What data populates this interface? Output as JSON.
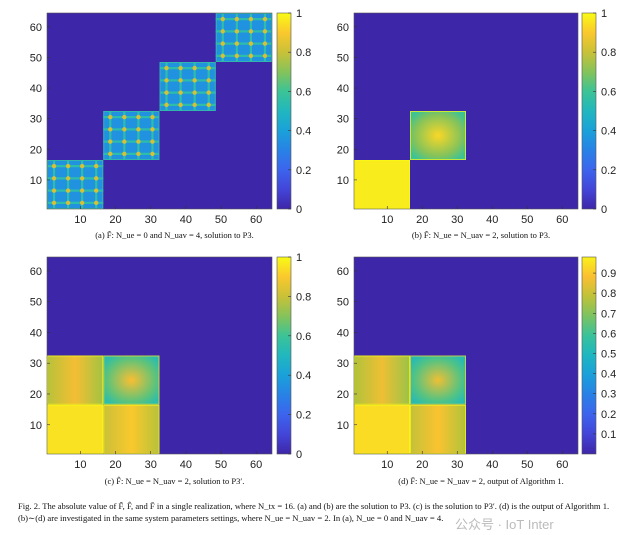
{
  "caption": "Fig. 2.  The absolute value of F̃, F̂, and F̄ in a single realization, where N_tx = 16. (a) and (b) are the solution to P3. (c) is the solution to P3′. (d) is the output of Algorithm 1. (b)∼(d) are investigated in the same system parameters settings, where N_ue = N_uav = 2. In (a), N_ue = 0 and N_uav = 4.",
  "watermark": "公众号 · IoT Inter",
  "colors": {
    "colormap_low": "#3e26a8",
    "colormap_mid": "#1ab1d2",
    "colormap_high": "#f9fb15"
  },
  "chart_data": [
    {
      "type": "heatmap",
      "panel": "a",
      "caption": "(a)  F̃: N_ue = 0 and N_uav = 4, solution to P3.",
      "xticks": [
        "10",
        "20",
        "30",
        "40",
        "50",
        "60"
      ],
      "yticks": [
        "10",
        "20",
        "30",
        "40",
        "50",
        "60"
      ],
      "xlim": [
        1,
        64
      ],
      "ylim": [
        1,
        64
      ],
      "colorbar": {
        "range": [
          0,
          1
        ],
        "ticks": [
          "0",
          "0.2",
          "0.4",
          "0.6",
          "0.8",
          "1"
        ]
      },
      "blocks": [
        {
          "rows": [
            1,
            16
          ],
          "cols": [
            1,
            16
          ],
          "value": 0.35,
          "pattern": "grid"
        },
        {
          "rows": [
            17,
            32
          ],
          "cols": [
            17,
            32
          ],
          "value": 0.35,
          "pattern": "grid"
        },
        {
          "rows": [
            33,
            48
          ],
          "cols": [
            33,
            48
          ],
          "value": 0.35,
          "pattern": "grid"
        },
        {
          "rows": [
            49,
            64
          ],
          "cols": [
            49,
            64
          ],
          "value": 0.35,
          "pattern": "grid"
        }
      ],
      "background_value": 0.0
    },
    {
      "type": "heatmap",
      "panel": "b",
      "caption": "(b)  F̃: N_ue = N_uav = 2, solution to P3.",
      "xticks": [
        "10",
        "20",
        "30",
        "40",
        "50",
        "60"
      ],
      "yticks": [
        "10",
        "20",
        "30",
        "40",
        "50",
        "60"
      ],
      "xlim": [
        1,
        64
      ],
      "ylim": [
        1,
        64
      ],
      "colorbar": {
        "range": [
          0,
          1
        ],
        "ticks": [
          "0",
          "0.2",
          "0.4",
          "0.6",
          "0.8",
          "1"
        ]
      },
      "blocks": [
        {
          "rows": [
            1,
            16
          ],
          "cols": [
            1,
            16
          ],
          "value": 0.97,
          "pattern": "flat"
        },
        {
          "rows": [
            17,
            32
          ],
          "cols": [
            17,
            32
          ],
          "value": 0.75,
          "pattern": "radial"
        }
      ],
      "background_value": 0.0
    },
    {
      "type": "heatmap",
      "panel": "c",
      "caption": "(c)  F̂: N_ue = N_uav = 2, solution to P3′.",
      "xticks": [
        "10",
        "20",
        "30",
        "40",
        "50",
        "60"
      ],
      "yticks": [
        "10",
        "20",
        "30",
        "40",
        "50",
        "60"
      ],
      "xlim": [
        1,
        64
      ],
      "ylim": [
        1,
        64
      ],
      "colorbar": {
        "range": [
          0,
          1
        ],
        "ticks": [
          "0",
          "0.2",
          "0.4",
          "0.6",
          "0.8",
          "1"
        ]
      },
      "blocks": [
        {
          "rows": [
            1,
            16
          ],
          "cols": [
            1,
            16
          ],
          "value": 0.95,
          "pattern": "flat"
        },
        {
          "rows": [
            1,
            16
          ],
          "cols": [
            17,
            32
          ],
          "value": 0.85,
          "pattern": "band"
        },
        {
          "rows": [
            17,
            32
          ],
          "cols": [
            1,
            16
          ],
          "value": 0.82,
          "pattern": "band"
        },
        {
          "rows": [
            17,
            32
          ],
          "cols": [
            17,
            32
          ],
          "value": 0.7,
          "pattern": "radial"
        }
      ],
      "background_value": 0.0
    },
    {
      "type": "heatmap",
      "panel": "d",
      "caption": "(d)  F̄: N_ue = N_uav = 2, output of Algorithm 1.",
      "xticks": [
        "10",
        "20",
        "30",
        "40",
        "50",
        "60"
      ],
      "yticks": [
        "10",
        "20",
        "30",
        "40",
        "50",
        "60"
      ],
      "xlim": [
        1,
        64
      ],
      "ylim": [
        1,
        64
      ],
      "colorbar": {
        "range": [
          0,
          0.98
        ],
        "ticks": [
          "0.1",
          "0.2",
          "0.3",
          "0.4",
          "0.5",
          "0.6",
          "0.7",
          "0.8",
          "0.9"
        ]
      },
      "blocks": [
        {
          "rows": [
            1,
            16
          ],
          "cols": [
            1,
            16
          ],
          "value": 0.94,
          "pattern": "flat"
        },
        {
          "rows": [
            1,
            16
          ],
          "cols": [
            17,
            32
          ],
          "value": 0.84,
          "pattern": "band"
        },
        {
          "rows": [
            17,
            32
          ],
          "cols": [
            1,
            16
          ],
          "value": 0.81,
          "pattern": "band"
        },
        {
          "rows": [
            17,
            32
          ],
          "cols": [
            17,
            32
          ],
          "value": 0.68,
          "pattern": "radial"
        }
      ],
      "background_value": 0.0
    }
  ]
}
